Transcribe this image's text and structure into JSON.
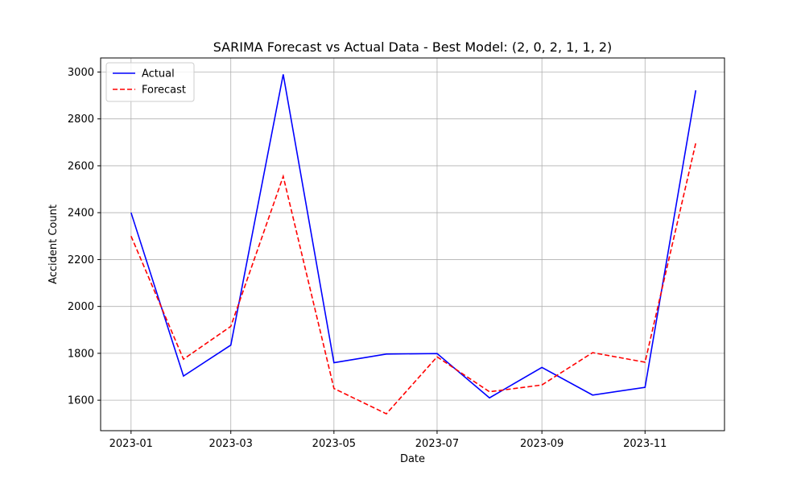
{
  "chart_data": {
    "type": "line",
    "title": "SARIMA Forecast vs Actual Data - Best Model: (2, 0, 2, 1, 1, 2)",
    "xlabel": "Date",
    "ylabel": "Accident Count",
    "x": [
      "2023-01",
      "2023-02",
      "2023-03",
      "2023-04",
      "2023-05",
      "2023-06",
      "2023-07",
      "2023-08",
      "2023-09",
      "2023-10",
      "2023-11",
      "2023-12"
    ],
    "x_ticks": [
      "2023-01",
      "2023-03",
      "2023-05",
      "2023-07",
      "2023-09",
      "2023-11"
    ],
    "y_ticks": [
      1600,
      1800,
      2000,
      2200,
      2400,
      2600,
      2800,
      3000
    ],
    "xlim": [
      "2022-12-14",
      "2023-12-18"
    ],
    "ylim": [
      1470,
      3060
    ],
    "grid": true,
    "legend": "top-left",
    "series": [
      {
        "name": "Actual",
        "color": "#0000ff",
        "style": "solid",
        "values": [
          2400,
          1703,
          1835,
          2990,
          1760,
          1797,
          1799,
          1610,
          1740,
          1622,
          1655,
          2922
        ]
      },
      {
        "name": "Forecast",
        "color": "#ff0000",
        "style": "dashed",
        "values": [
          2300,
          1775,
          1915,
          2555,
          1650,
          1542,
          1785,
          1636,
          1665,
          1803,
          1762,
          2697
        ]
      }
    ]
  }
}
